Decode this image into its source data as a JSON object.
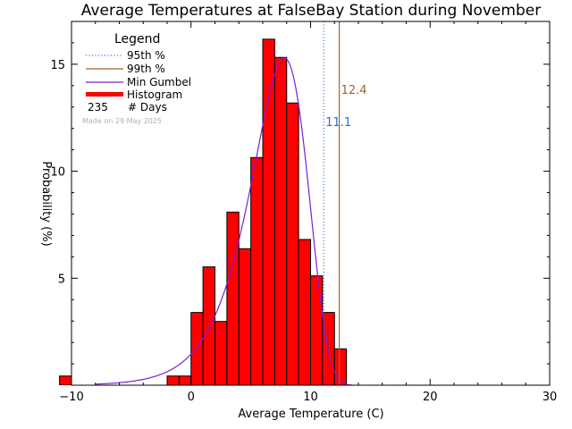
{
  "chart_data": {
    "type": "bar",
    "title": "Average Temperatures at FalseBay Station during November",
    "xlabel": "Average Temperature (C)",
    "ylabel": "Probability  (%)",
    "xlim": [
      -10,
      30
    ],
    "ylim": [
      0,
      17
    ],
    "xticks": [
      -10,
      0,
      10,
      20,
      30
    ],
    "yticks": [
      5,
      10,
      15
    ],
    "histogram": {
      "bin_width": 1,
      "bins": [
        {
          "x0": -11,
          "x1": -10,
          "value": 0.43
        },
        {
          "x0": -2,
          "x1": -1,
          "value": 0.43
        },
        {
          "x0": -1,
          "x1": 0,
          "value": 0.43
        },
        {
          "x0": 0,
          "x1": 1,
          "value": 3.4
        },
        {
          "x0": 1,
          "x1": 2,
          "value": 5.53
        },
        {
          "x0": 2,
          "x1": 3,
          "value": 2.98
        },
        {
          "x0": 3,
          "x1": 4,
          "value": 8.09
        },
        {
          "x0": 4,
          "x1": 5,
          "value": 6.38
        },
        {
          "x0": 5,
          "x1": 6,
          "value": 10.64
        },
        {
          "x0": 6,
          "x1": 7,
          "value": 16.17
        },
        {
          "x0": 7,
          "x1": 8,
          "value": 15.32
        },
        {
          "x0": 8,
          "x1": 9,
          "value": 13.19
        },
        {
          "x0": 9,
          "x1": 10,
          "value": 6.81
        },
        {
          "x0": 10,
          "x1": 11,
          "value": 5.11
        },
        {
          "x0": 11,
          "x1": 12,
          "value": 3.4
        },
        {
          "x0": 12,
          "x1": 13,
          "value": 1.7
        }
      ]
    },
    "gumbel": {
      "mode": 7.8,
      "scale": 2.35,
      "peak": 15.3
    },
    "percentiles": [
      {
        "name": "95th %",
        "value": 11.1,
        "label": "11.1",
        "color": "#1f6fd6",
        "style": "dotted"
      },
      {
        "name": "99th %",
        "value": 12.4,
        "label": "12.4",
        "color": "#a0642a",
        "style": "solid"
      }
    ],
    "legend": {
      "title": "Legend",
      "entries": [
        "95th %",
        "99th %",
        "Min Gumbel",
        "Histogram"
      ],
      "days_count": "235",
      "days_label": "# Days",
      "placement": "top-left"
    },
    "made_on": "Made on 29 May 2025",
    "colors": {
      "histogram": "#ff0000",
      "gumbel": "#7b1fd6",
      "axis": "#000000"
    }
  }
}
